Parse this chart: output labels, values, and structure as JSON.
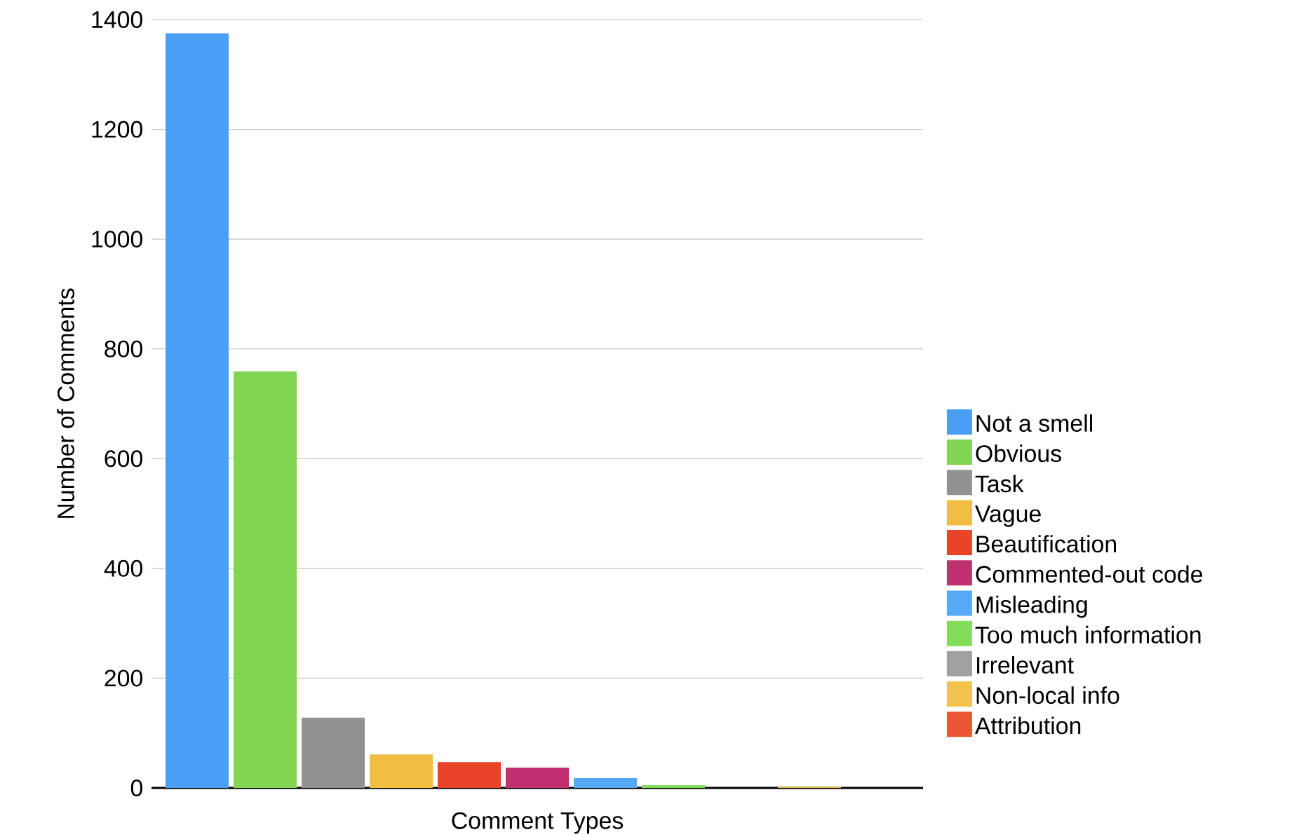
{
  "chart_data": {
    "type": "bar",
    "xlabel": "Comment Types",
    "ylabel": "Number of Comments",
    "categories": [
      null
    ],
    "series": [
      {
        "name": "Not a smell",
        "color": "#4a9ff5",
        "values": [
          1375
        ]
      },
      {
        "name": "Obvious",
        "color": "#82d552",
        "values": [
          759
        ]
      },
      {
        "name": "Task",
        "color": "#929292",
        "values": [
          128
        ]
      },
      {
        "name": "Vague",
        "color": "#f0bc42",
        "values": [
          61
        ]
      },
      {
        "name": "Beautification",
        "color": "#e9432a",
        "values": [
          47
        ]
      },
      {
        "name": "Commented-out code",
        "color": "#c2316f",
        "values": [
          37
        ]
      },
      {
        "name": "Misleading",
        "color": "#56a9f7",
        "values": [
          18
        ]
      },
      {
        "name": "Too much information",
        "color": "#82dc5a",
        "values": [
          5
        ]
      },
      {
        "name": "Irrelevant",
        "color": "#a0a0a0",
        "values": [
          null
        ]
      },
      {
        "name": "Non-local info",
        "color": "#f2c24a",
        "values": [
          2
        ]
      },
      {
        "name": "Attribution",
        "color": "#ec5534",
        "values": [
          0
        ]
      }
    ],
    "ylim": [
      0,
      1400
    ],
    "yticks": [
      0,
      200,
      400,
      600,
      800,
      1000,
      1200,
      1400
    ],
    "grid": "y",
    "legend": "right"
  }
}
